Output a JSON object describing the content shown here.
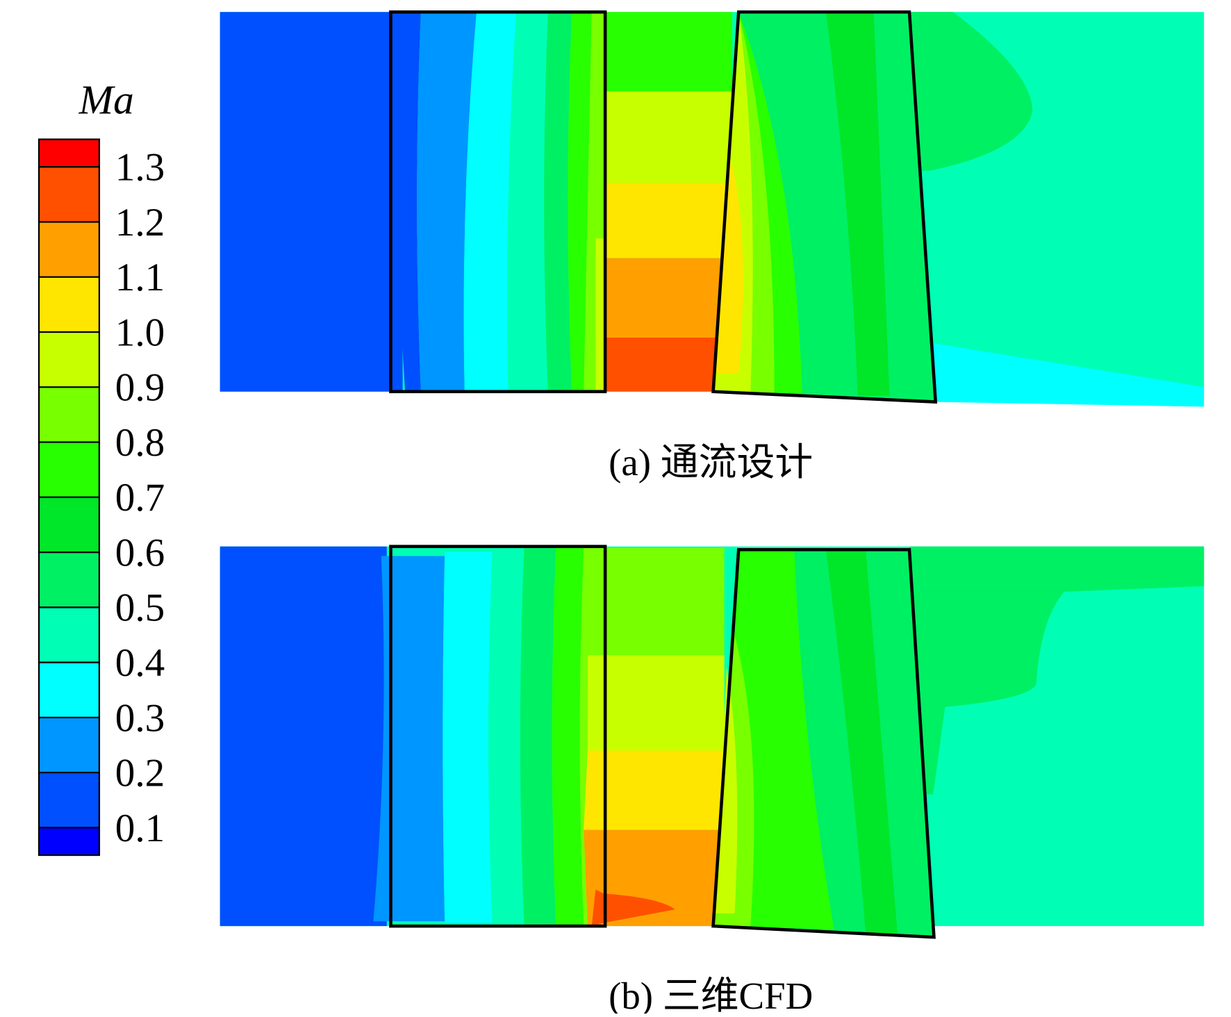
{
  "colorbar": {
    "title": "Ma",
    "ticks": [
      {
        "value": 0.1,
        "label": "0.1"
      },
      {
        "value": 0.2,
        "label": "0.2"
      },
      {
        "value": 0.3,
        "label": "0.3"
      },
      {
        "value": 0.4,
        "label": "0.4"
      },
      {
        "value": 0.5,
        "label": "0.5"
      },
      {
        "value": 0.6,
        "label": "0.6"
      },
      {
        "value": 0.7,
        "label": "0.7"
      },
      {
        "value": 0.8,
        "label": "0.8"
      },
      {
        "value": 0.9,
        "label": "0.9"
      },
      {
        "value": 1.0,
        "label": "1.0"
      },
      {
        "value": 1.1,
        "label": "1.1"
      },
      {
        "value": 1.2,
        "label": "1.2"
      },
      {
        "value": 1.3,
        "label": "1.3"
      }
    ],
    "colors": [
      "#0000ff",
      "#0050ff",
      "#0096ff",
      "#00ffff",
      "#00ffb4",
      "#00f064",
      "#00e628",
      "#28ff00",
      "#78ff00",
      "#c8ff00",
      "#ffe600",
      "#ffa000",
      "#ff5000",
      "#ff0000"
    ]
  },
  "panels": [
    {
      "caption": "(a) 通流设计"
    },
    {
      "caption": "(b) 三维CFD"
    }
  ]
}
